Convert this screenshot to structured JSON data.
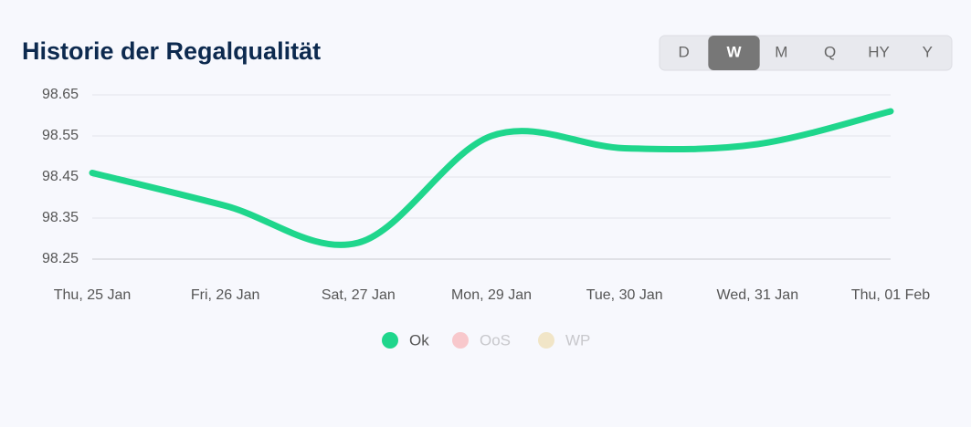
{
  "periods": {
    "options": [
      "D",
      "W",
      "M",
      "Q",
      "HY",
      "Y"
    ],
    "active": "W"
  },
  "chart_data": {
    "type": "line",
    "title": "Historie der Regalqualität",
    "categories": [
      "Thu, 25 Jan",
      "Fri, 26 Jan",
      "Sat, 27 Jan",
      "Mon, 29 Jan",
      "Tue, 30 Jan",
      "Wed, 31 Jan",
      "Thu, 01 Feb"
    ],
    "series": [
      {
        "name": "Ok",
        "color": "#1fd68c",
        "values": [
          98.46,
          98.38,
          98.29,
          98.55,
          98.52,
          98.53,
          98.61
        ]
      },
      {
        "name": "OoS",
        "color": "#f87171",
        "hidden": true
      },
      {
        "name": "WP",
        "color": "#e6c460",
        "hidden": true
      }
    ],
    "ylim": [
      98.25,
      98.65
    ],
    "yticks": [
      98.25,
      98.35,
      98.45,
      98.55,
      98.65
    ],
    "grid": true,
    "smooth": true,
    "legend": "bottom"
  }
}
